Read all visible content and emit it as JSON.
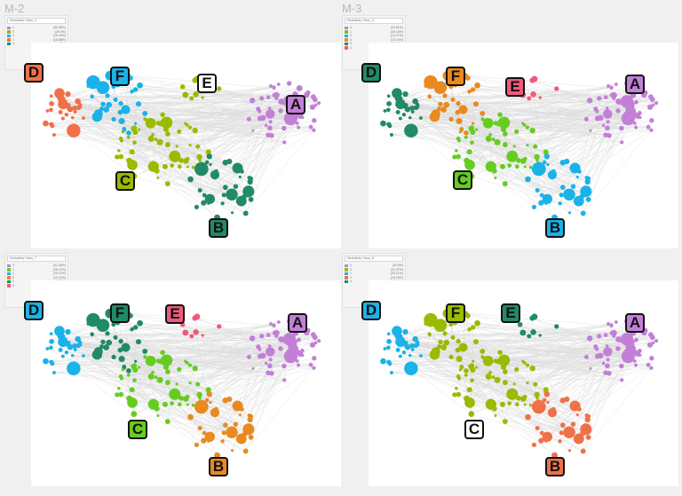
{
  "panels": [
    {
      "title": "M-2",
      "legend_title": "Modularity Class_2",
      "legend": [
        {
          "cls": "4",
          "pct": "(30.08%)",
          "color": "#c27fd6"
        },
        {
          "cls": "0",
          "pct": "(26.0%)",
          "color": "#99bb00"
        },
        {
          "cls": "3",
          "pct": "(19.19%)",
          "color": "#1ab2e8"
        },
        {
          "cls": "1",
          "pct": "(18.88%)",
          "color": "#f07048"
        },
        {
          "cls": "5",
          "pct": "(14.48%)",
          "color": "#218a66"
        }
      ],
      "labels": {
        "A": "#c27fd6",
        "B": "#218a66",
        "C": "#99bb00",
        "D": "#f07048",
        "E": "#ffffff",
        "F": "#1ab2e8"
      },
      "clusters": {
        "A": "#c27fd6",
        "B": "#218a66",
        "C": "#99bb00",
        "D": "#f07048",
        "E": "#99bb00",
        "F": "#1ab2e8"
      }
    },
    {
      "title": "M-3",
      "legend_title": "Modularity Class_3",
      "legend": [
        {
          "cls": "0",
          "pct": "(34.81%)",
          "color": "#c27fd6"
        },
        {
          "cls": "1",
          "pct": "(30.16%)",
          "color": "#66cc22"
        },
        {
          "cls": "2",
          "pct": "(13.47%)",
          "color": "#1ab2e8"
        },
        {
          "cls": "4",
          "pct": "(10.10%)",
          "color": "#e88a20"
        },
        {
          "cls": "5",
          "pct": "(11.16%)",
          "color": "#218a66"
        },
        {
          "cls": "3",
          "pct": "(8.09%)",
          "color": "#f05a7a"
        }
      ],
      "labels": {
        "A": "#c27fd6",
        "B": "#1ab2e8",
        "C": "#66cc22",
        "D": "#218a66",
        "E": "#f05a7a",
        "F": "#e88a20"
      },
      "clusters": {
        "A": "#c27fd6",
        "B": "#1ab2e8",
        "C": "#66cc22",
        "D": "#218a66",
        "E": "#f05a7a",
        "F": "#e88a20"
      }
    },
    {
      "title": "",
      "legend_title": "Modularity Class_7",
      "legend": [
        {
          "cls": "3",
          "pct": "(31.06%)",
          "color": "#c27fd6"
        },
        {
          "cls": "1",
          "pct": "(26.12%)",
          "color": "#66cc22"
        },
        {
          "cls": "4",
          "pct": "(20.12%)",
          "color": "#1ab2e8"
        },
        {
          "cls": "5",
          "pct": "(12.12%)",
          "color": "#e88a20"
        },
        {
          "cls": "2",
          "pct": "(8.08%)",
          "color": "#218a66"
        },
        {
          "cls": "0",
          "pct": "(2.02%)",
          "color": "#f05a7a"
        }
      ],
      "labels": {
        "A": "#c27fd6",
        "B": "#e88a20",
        "C": "#66cc22",
        "D": "#1ab2e8",
        "E": "#f05a7a",
        "F": "#218a66"
      },
      "clusters": {
        "A": "#c27fd6",
        "B": "#e88a20",
        "C": "#66cc22",
        "D": "#1ab2e8",
        "E": "#f05a7a",
        "F": "#218a66"
      }
    },
    {
      "title": "",
      "legend_title": "Modularity Class_8",
      "legend": [
        {
          "cls": "0",
          "pct": "(30.6%)",
          "color": "#c27fd6"
        },
        {
          "cls": "3",
          "pct": "(24.37%)",
          "color": "#99bb00"
        },
        {
          "cls": "1",
          "pct": "(20.21%)",
          "color": "#1ab2e8"
        },
        {
          "cls": "2",
          "pct": "(15.15%)",
          "color": "#f07048"
        },
        {
          "cls": "4",
          "pct": "(11.16%)",
          "color": "#218a66"
        }
      ],
      "labels": {
        "A": "#c27fd6",
        "B": "#f07048",
        "C": "#ffffff",
        "D": "#1ab2e8",
        "E": "#218a66",
        "F": "#99bb00"
      },
      "clusters": {
        "A": "#c27fd6",
        "B": "#f07048",
        "C": "#99bb00",
        "D": "#1ab2e8",
        "E": "#218a66",
        "F": "#99bb00"
      }
    }
  ],
  "label_letters": [
    "A",
    "B",
    "C",
    "D",
    "E",
    "F"
  ]
}
